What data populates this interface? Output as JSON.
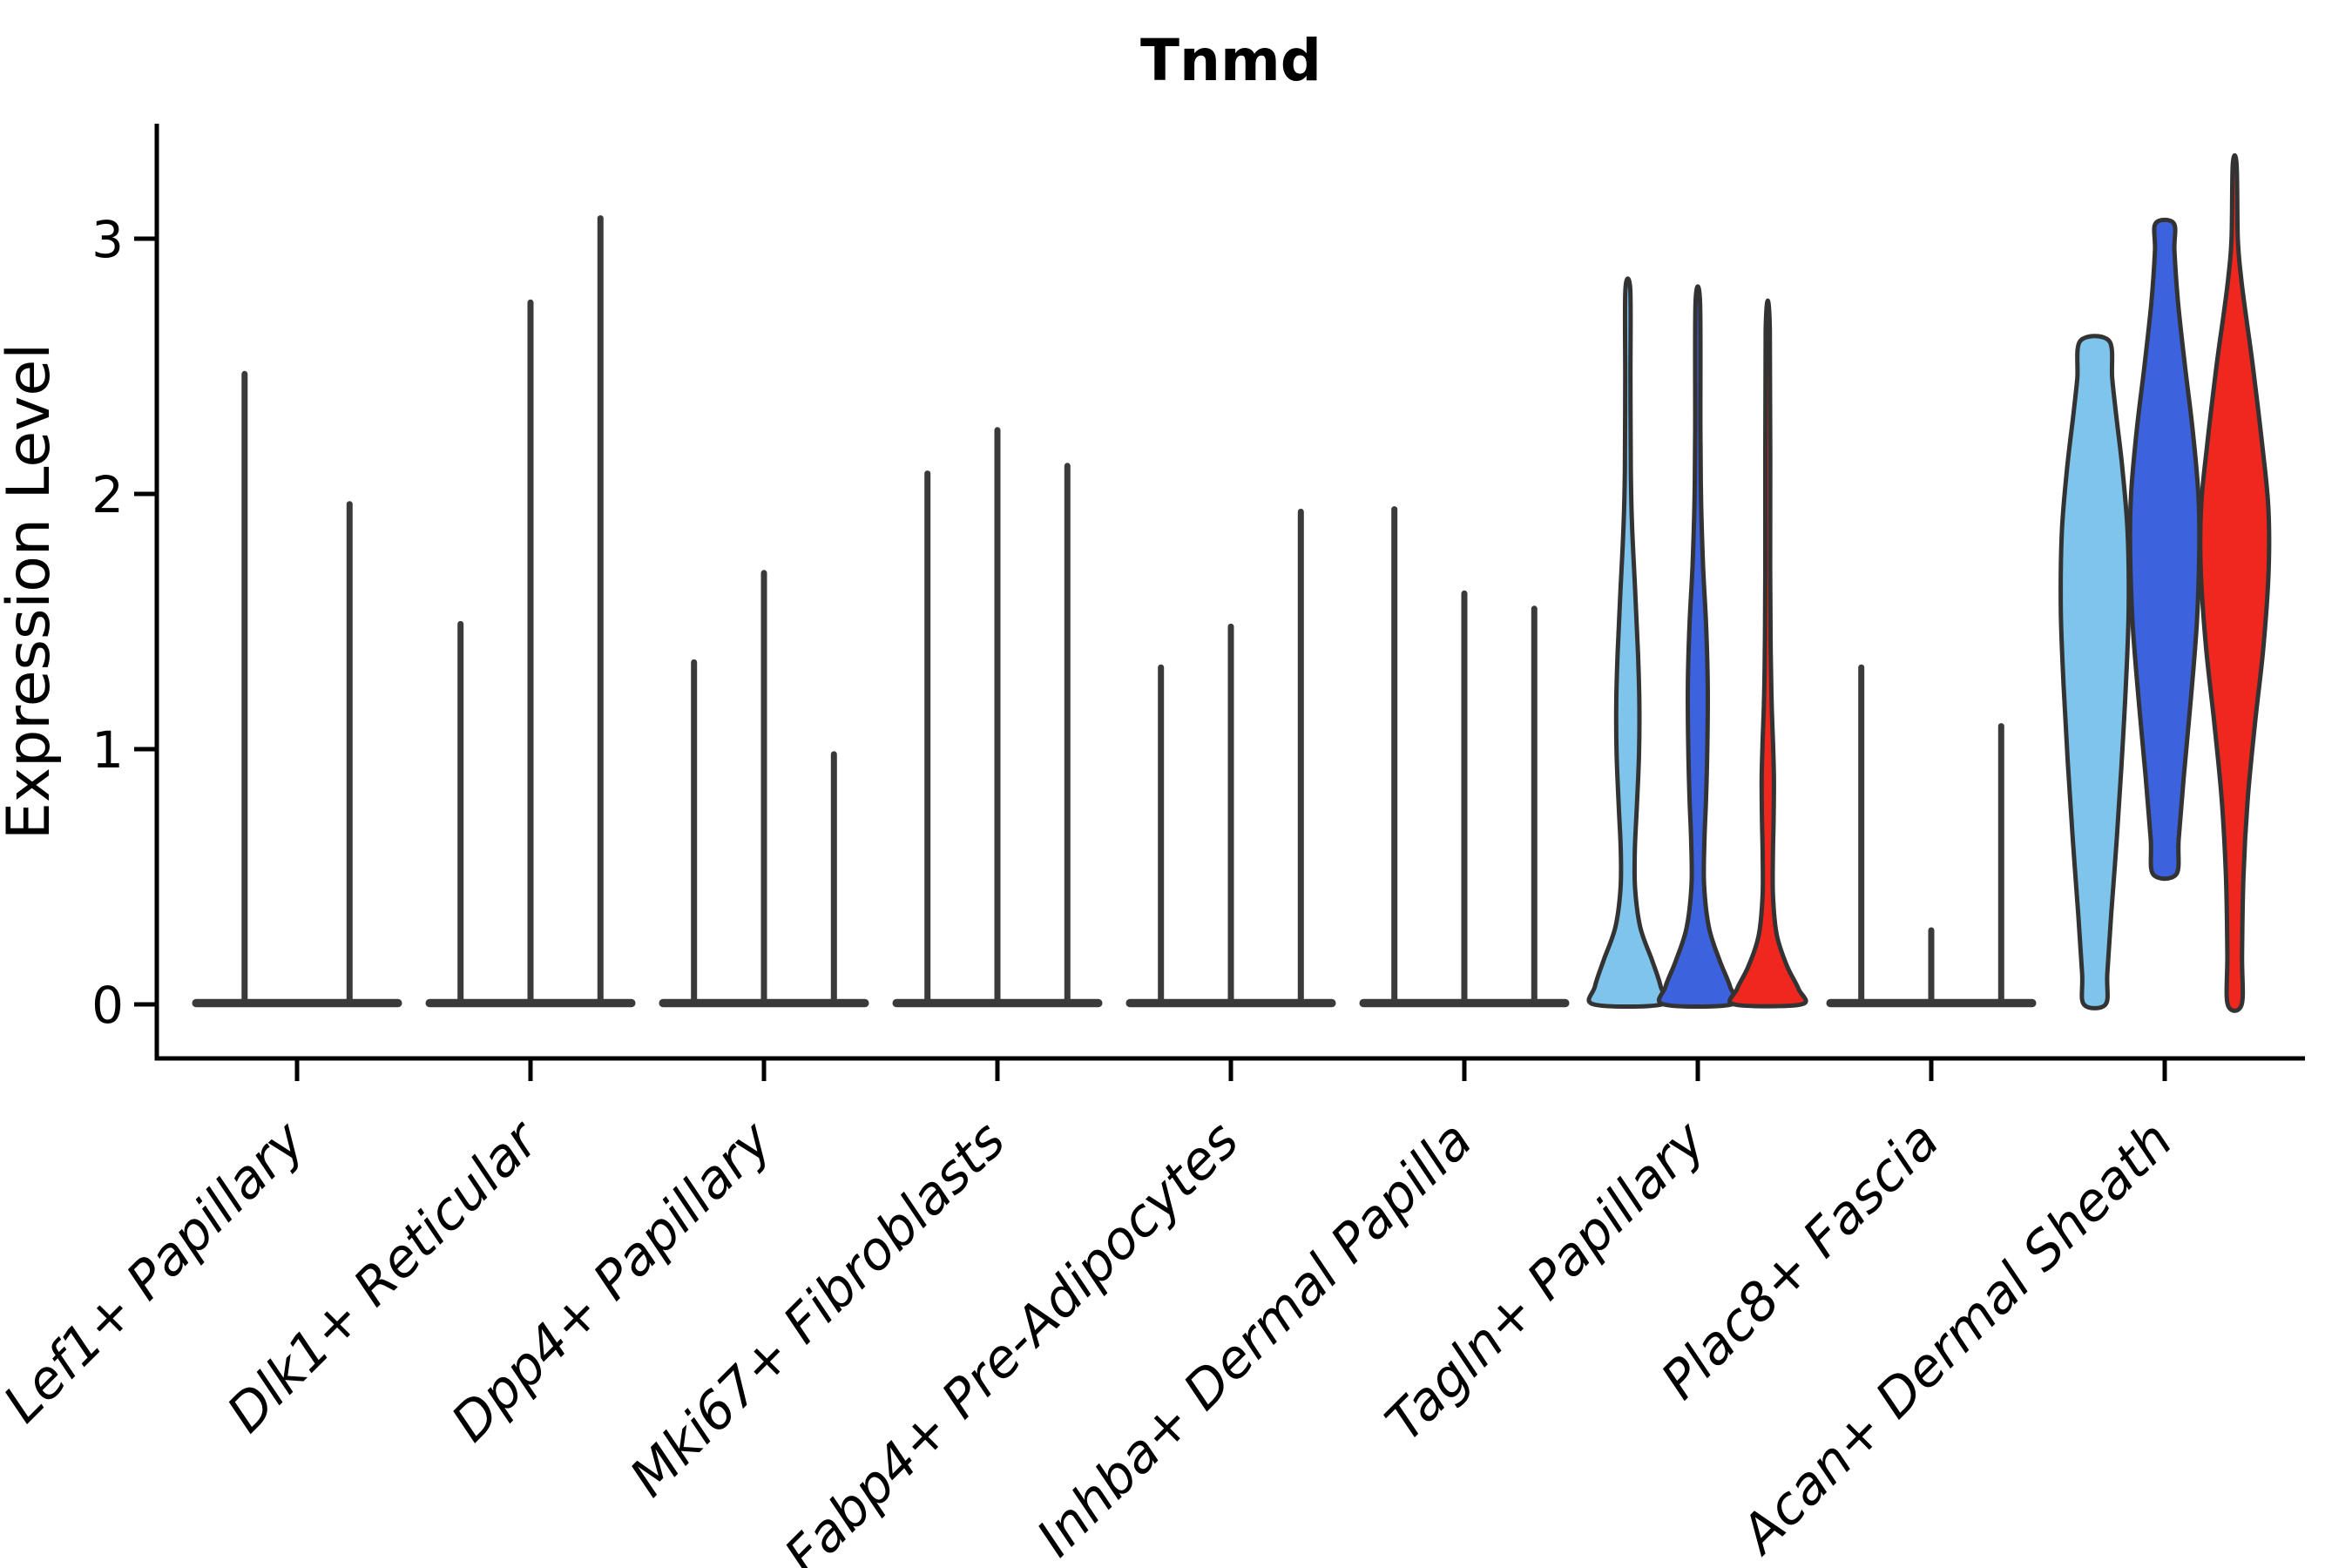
{
  "figure": {
    "title": "Tnmd"
  },
  "chart_data": {
    "type": "violin",
    "title": "Tnmd",
    "xlabel": "",
    "ylabel": "Expression Level",
    "yticks": [
      "0",
      "1",
      "2",
      "3"
    ],
    "ylim": [
      -0.2,
      3.45
    ],
    "grid": false,
    "legend": "none",
    "x_tick_style": "italic, rotated 45deg, anchored at tick",
    "colors": {
      "lightblue": "#7FC4EA",
      "blue": "#3D62DE",
      "red": "#F0271F",
      "spike": "#3A3A3A",
      "outline": "#333333",
      "axis": "#000000"
    },
    "categories": [
      "Lef1+ Papillary",
      "Dlk1+ Reticular",
      "Dpp4+ Papillary",
      "Mki67+ Fibroblasts",
      "Fabp4+ Pre-Adipocytes",
      "Inhba+ Dermal Papilla",
      "Tagln+ Papillary",
      "Plac8+ Fascia",
      "Acan+ Dermal Sheath"
    ],
    "groups": [
      {
        "category": "Lef1+ Papillary",
        "violins": [
          {
            "kind": "spike",
            "max": 2.47
          },
          {
            "kind": "spike",
            "max": 1.96
          }
        ]
      },
      {
        "category": "Dlk1+ Reticular",
        "violins": [
          {
            "kind": "spike",
            "max": 1.49
          },
          {
            "kind": "spike",
            "max": 2.75
          },
          {
            "kind": "spike",
            "max": 3.08
          }
        ]
      },
      {
        "category": "Dpp4+ Papillary",
        "violins": [
          {
            "kind": "spike",
            "max": 1.34
          },
          {
            "kind": "spike",
            "max": 1.69
          },
          {
            "kind": "spike",
            "max": 0.98
          }
        ]
      },
      {
        "category": "Mki67+ Fibroblasts",
        "violins": [
          {
            "kind": "spike",
            "max": 2.08
          },
          {
            "kind": "spike",
            "max": 2.25
          },
          {
            "kind": "spike",
            "max": 2.11
          }
        ]
      },
      {
        "category": "Fabp4+ Pre-Adipocytes",
        "violins": [
          {
            "kind": "spike",
            "max": 1.32
          },
          {
            "kind": "spike",
            "max": 1.48
          },
          {
            "kind": "spike",
            "max": 1.93
          }
        ]
      },
      {
        "category": "Inhba+ Dermal Papilla",
        "violins": [
          {
            "kind": "spike",
            "max": 1.94
          },
          {
            "kind": "spike",
            "max": 1.61
          },
          {
            "kind": "spike",
            "max": 1.55
          }
        ]
      },
      {
        "category": "Tagln+ Papillary",
        "violins": [
          {
            "kind": "violin",
            "color": "lightblue",
            "min": 0,
            "max": 2.8,
            "profile": [
              [
                0,
                0.97
              ],
              [
                0.07,
                0.94
              ],
              [
                0.17,
                0.7
              ],
              [
                0.3,
                0.36
              ],
              [
                0.45,
                0.21
              ],
              [
                0.6,
                0.2
              ],
              [
                0.78,
                0.26
              ],
              [
                0.98,
                0.32
              ],
              [
                1.18,
                0.33
              ],
              [
                1.38,
                0.29
              ],
              [
                1.62,
                0.21
              ],
              [
                1.88,
                0.12
              ],
              [
                2.1,
                0.085
              ],
              [
                2.45,
                0.075
              ],
              [
                2.8,
                0.07
              ]
            ]
          },
          {
            "kind": "violin",
            "color": "blue",
            "min": 0,
            "max": 2.75,
            "profile": [
              [
                0,
                0.97
              ],
              [
                0.07,
                0.92
              ],
              [
                0.17,
                0.63
              ],
              [
                0.3,
                0.32
              ],
              [
                0.47,
                0.18
              ],
              [
                0.64,
                0.19
              ],
              [
                0.82,
                0.24
              ],
              [
                1.02,
                0.275
              ],
              [
                1.25,
                0.285
              ],
              [
                1.48,
                0.24
              ],
              [
                1.72,
                0.15
              ],
              [
                1.97,
                0.095
              ],
              [
                2.25,
                0.075
              ],
              [
                2.75,
                0.065
              ]
            ]
          },
          {
            "kind": "violin",
            "color": "red",
            "min": 0,
            "max": 2.64,
            "profile": [
              [
                0,
                0.96
              ],
              [
                0.06,
                0.88
              ],
              [
                0.15,
                0.55
              ],
              [
                0.27,
                0.26
              ],
              [
                0.42,
                0.15
              ],
              [
                0.58,
                0.145
              ],
              [
                0.72,
                0.165
              ],
              [
                0.88,
                0.175
              ],
              [
                1.02,
                0.15
              ],
              [
                1.18,
                0.11
              ],
              [
                1.38,
                0.085
              ],
              [
                1.7,
                0.07
              ],
              [
                2.64,
                0.06
              ]
            ]
          }
        ]
      },
      {
        "category": "Plac8+ Fascia",
        "violins": [
          {
            "kind": "spike",
            "max": 1.32
          },
          {
            "kind": "spike",
            "max": 0.29
          },
          {
            "kind": "spike",
            "max": 1.09
          }
        ]
      },
      {
        "category": "Acan+ Dermal Sheath",
        "violins": [
          {
            "kind": "violin",
            "color": "lightblue",
            "min": 0,
            "max": 2.6,
            "profile": [
              [
                0,
                0.31
              ],
              [
                0.12,
                0.36
              ],
              [
                0.35,
                0.47
              ],
              [
                0.65,
                0.63
              ],
              [
                0.95,
                0.77
              ],
              [
                1.25,
                0.89
              ],
              [
                1.55,
                0.97
              ],
              [
                1.85,
                0.94
              ],
              [
                2.1,
                0.79
              ],
              [
                2.3,
                0.62
              ],
              [
                2.45,
                0.5
              ],
              [
                2.6,
                0.41
              ]
            ]
          },
          {
            "kind": "violin",
            "color": "blue",
            "min": 0.51,
            "max": 3.06,
            "profile": [
              [
                0.51,
                0.33
              ],
              [
                0.65,
                0.4
              ],
              [
                0.9,
                0.55
              ],
              [
                1.2,
                0.75
              ],
              [
                1.5,
                0.92
              ],
              [
                1.8,
                0.99
              ],
              [
                2.0,
                0.96
              ],
              [
                2.25,
                0.8
              ],
              [
                2.5,
                0.58
              ],
              [
                2.75,
                0.38
              ],
              [
                2.95,
                0.28
              ],
              [
                3.06,
                0.26
              ]
            ]
          },
          {
            "kind": "violin",
            "color": "red",
            "min": 0,
            "max": 3.29,
            "profile": [
              [
                0,
                0.2
              ],
              [
                0.2,
                0.21
              ],
              [
                0.5,
                0.25
              ],
              [
                0.8,
                0.37
              ],
              [
                1.1,
                0.58
              ],
              [
                1.4,
                0.82
              ],
              [
                1.7,
                0.97
              ],
              [
                1.95,
                0.96
              ],
              [
                2.2,
                0.78
              ],
              [
                2.5,
                0.52
              ],
              [
                2.7,
                0.32
              ],
              [
                2.85,
                0.18
              ],
              [
                3.0,
                0.09
              ],
              [
                3.29,
                0.055
              ]
            ]
          }
        ]
      }
    ]
  }
}
